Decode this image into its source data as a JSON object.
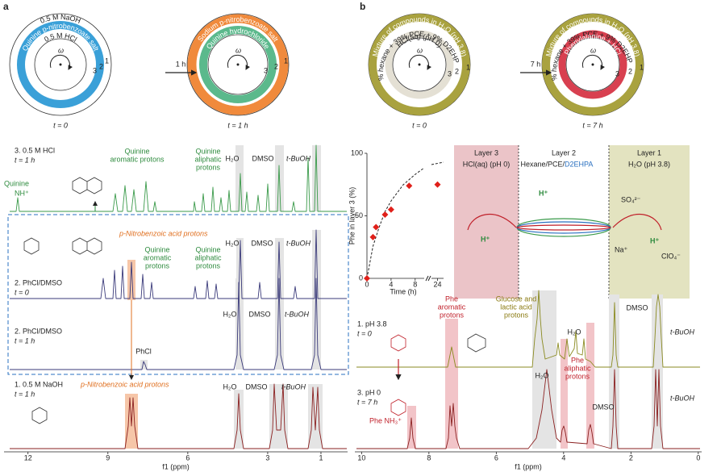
{
  "ring_labels": {
    "numbers": [
      "1",
      "2",
      "3"
    ],
    "omega": "ω"
  },
  "panel_a": {
    "label": "a",
    "ring_1": {
      "outer": "0.5 M NaOH",
      "middle": "Quinine p-nitrobenzoate salt",
      "inner": "0.5 M HCl",
      "time": "t = 0"
    },
    "arrow": "1 h",
    "ring_2": {
      "outer": "Sodium p-nitrobenzoate salt",
      "inner": "Quinine hydrochloride",
      "time": "t = 1 h"
    },
    "spectra": [
      {
        "name": "3. 0.5 M HCl",
        "time": "t = 1 h",
        "labels": [
          "Quinine",
          "NH⁺",
          "Quinine",
          "aromatic protons",
          "Quinine",
          "aliphatic",
          "protons",
          "H₂O",
          "DMSO",
          "t-BuOH"
        ]
      },
      {
        "name": "2. PhCl/DMSO",
        "time": "t = 0",
        "labels": [
          "p-Nitrobenzoic acid protons",
          "Quinine",
          "aromatic",
          "protons",
          "Quinine",
          "aliphatic",
          "protons",
          "H₂O",
          "DMSO",
          "t-BuOH"
        ]
      },
      {
        "name": "2. PhCl/DMSO",
        "time": "t = 1 h",
        "labels": [
          "PhCl",
          "H₂O",
          "DMSO",
          "t-BuOH"
        ]
      },
      {
        "name": "1. 0.5 M NaOH",
        "time": "t = 1 h",
        "labels": [
          "p-Nitrobenzoic acid protons",
          "H₂O",
          "DMSO",
          "t-BuOH"
        ]
      }
    ],
    "axis": {
      "xlim": [
        12.9,
        0
      ],
      "xticks": [
        12,
        9,
        6,
        3,
        1
      ],
      "label": "f1 (ppm)"
    }
  },
  "panel_b": {
    "label": "b",
    "ring_3": {
      "outer": "Mixture of compounds in H₂O (pH 3.8)",
      "middle": "52% hexane + 39% PCE + 9% D2EHPA",
      "inner": "HCl(aq) (pH 0)",
      "time": "t = 0"
    },
    "arrow": "7 h",
    "ring_4": {
      "outer": "Mixture of compounds in H₂O (pH 3.8)",
      "middle": "52% hexane + 39% PCE + 9% D2EHPA",
      "inner": "Phenylalanine + HCl",
      "time": "t = 7 h"
    },
    "inset": {
      "y_label": "Phe in layer 3 (%)",
      "x_label": "Time (h)",
      "x": [
        0,
        1,
        1.5,
        3,
        4,
        7,
        24
      ],
      "values": [
        0,
        33,
        41,
        51,
        55,
        74,
        75
      ],
      "color": "#e0201a",
      "ylim": [
        0,
        100
      ],
      "yticks": [
        0,
        50,
        100
      ],
      "xlim": [
        0,
        25
      ],
      "xbreak": [
        9.5,
        23
      ],
      "xticks": [
        0,
        4,
        8,
        24
      ]
    },
    "layers": [
      {
        "name": "Layer 3",
        "medium": "HCl(aq) (pH 0)"
      },
      {
        "name": "Layer 2",
        "medium": "Hexane/PCE/",
        "extractant": "D2EHPA"
      },
      {
        "name": "Layer 1",
        "medium": "H₂O (pH 3.8)"
      }
    ],
    "species": [
      "H⁺",
      "H⁺",
      "SO₄²⁻",
      "Na⁺",
      "ClO₄⁻",
      "H⁺"
    ],
    "spectra": [
      {
        "name": "1. pH 3.8",
        "time": "t = 0",
        "labels": [
          "Phe",
          "aromatic",
          "protons",
          "Glucose and",
          "lactic acid",
          "protons",
          "H₂O",
          "DMSO",
          "t-BuOH"
        ]
      },
      {
        "name": "3. pH 0",
        "time": "t = 7 h",
        "labels": [
          "Phe NH₃⁺",
          "H₂O",
          "Phe",
          "aliphatic",
          "protons",
          "DMSO",
          "t-BuOH"
        ]
      }
    ],
    "axis": {
      "xlim": [
        10.2,
        -0.1
      ],
      "xticks": [
        10,
        8,
        6,
        4,
        2,
        0
      ],
      "label": "f1 (ppm)"
    }
  }
}
